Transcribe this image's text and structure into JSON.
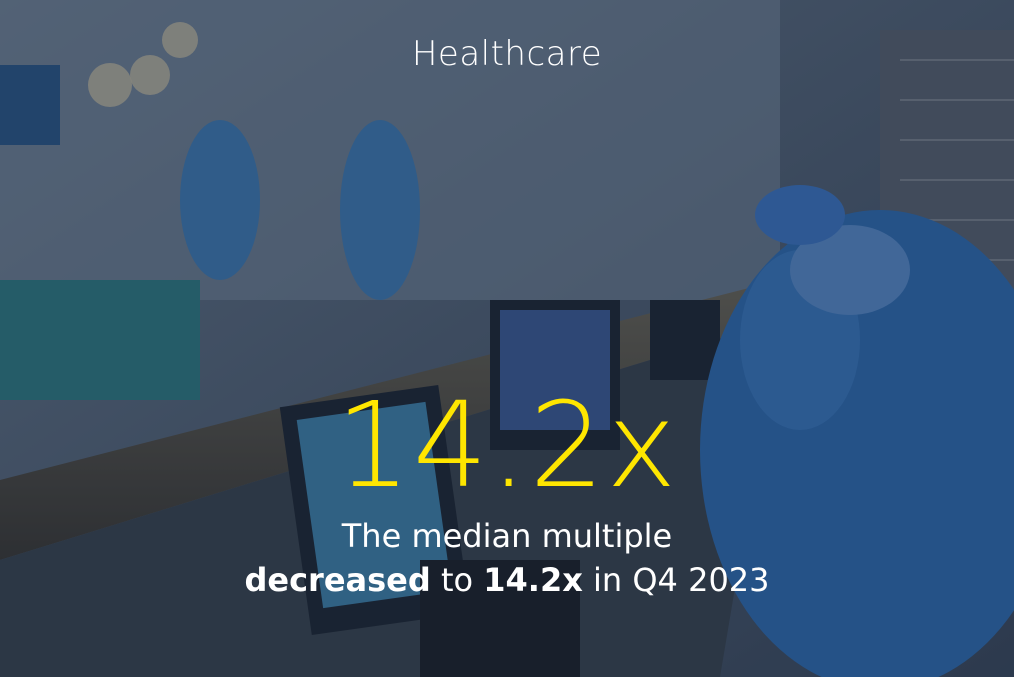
{
  "category": "Healthcare",
  "headline_value": "14.2x",
  "description": {
    "line1": "The median multiple",
    "line2_bold1": "decreased",
    "line2_mid": " to ",
    "line2_bold2": "14.2x",
    "line2_end": " in Q4 2023"
  },
  "colors": {
    "accent": "#ffe600",
    "text": "#ffffff",
    "overlay": "#1c2640"
  }
}
